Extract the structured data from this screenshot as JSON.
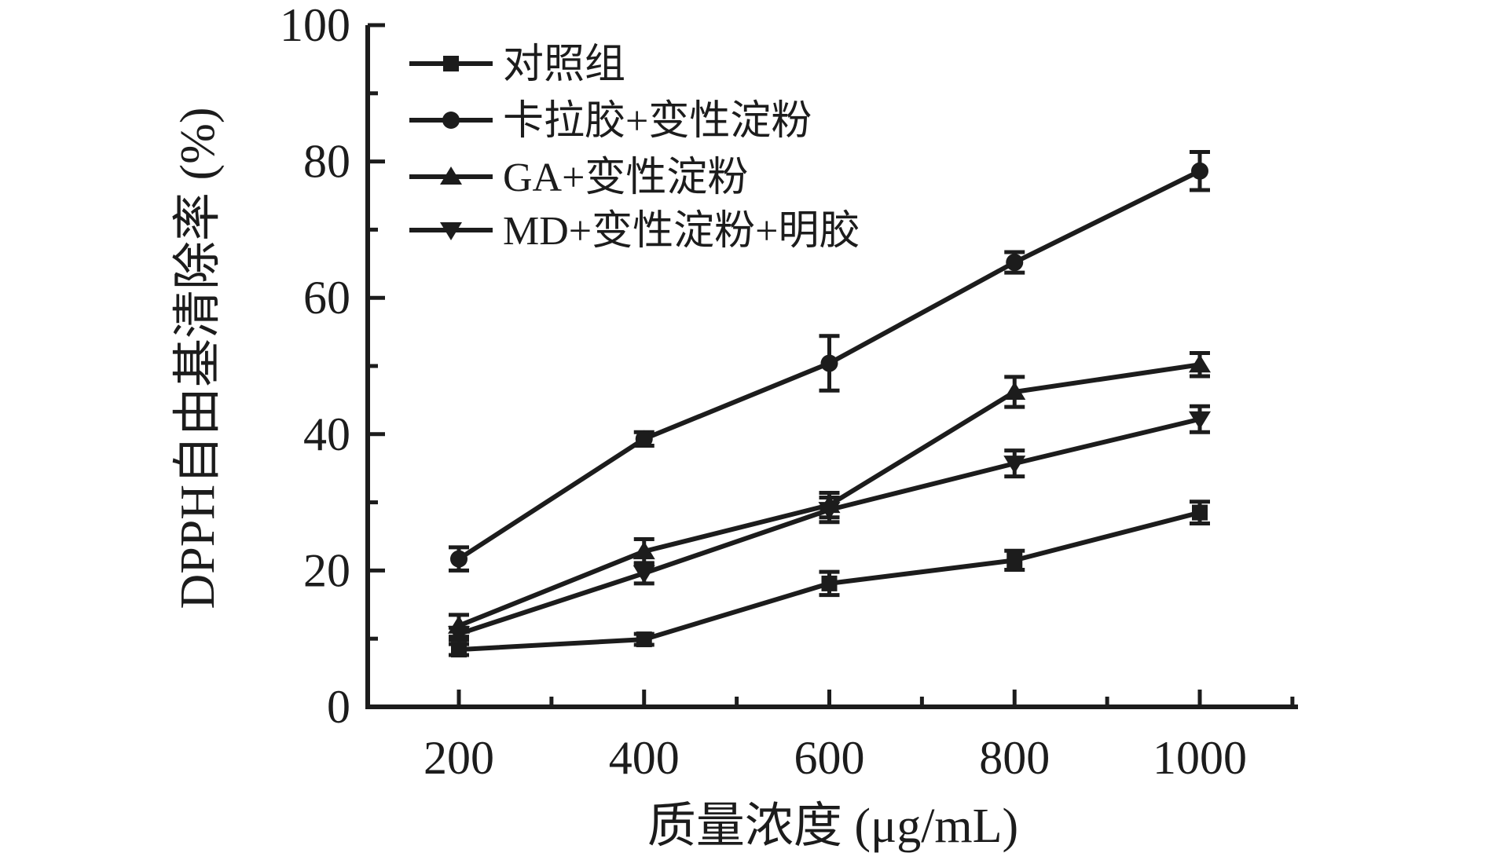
{
  "figure": {
    "background": "#ffffff",
    "ink_color": "#1c1c1c"
  },
  "chart_data": {
    "type": "line",
    "title": "",
    "xlabel": "质量浓度 (μg/mL)",
    "ylabel": "DPPH自由基清除率 (%)",
    "x": [
      200,
      400,
      600,
      800,
      1000
    ],
    "xlim": [
      100,
      1105
    ],
    "ylim": [
      0,
      100
    ],
    "x_major_ticks": [
      200,
      400,
      600,
      800,
      1000
    ],
    "x_minor_ticks": [
      300,
      500,
      700,
      900,
      1100
    ],
    "y_major_ticks": [
      0,
      20,
      40,
      60,
      80,
      100
    ],
    "y_minor_ticks": [
      10,
      30,
      50,
      70,
      90
    ],
    "grid": false,
    "error_bars": true,
    "legend_position": "top-left-inside",
    "series": [
      {
        "name": "对照组",
        "marker": "square",
        "color": "#1c1c1c",
        "values": [
          8.4,
          9.9,
          18.1,
          21.5,
          28.5
        ],
        "errors": [
          0.8,
          0.8,
          1.7,
          1.4,
          1.6
        ]
      },
      {
        "name": "卡拉胶+变性淀粉",
        "marker": "circle",
        "color": "#1c1c1c",
        "values": [
          21.7,
          39.3,
          50.4,
          65.2,
          78.6
        ],
        "errors": [
          1.7,
          1.0,
          4.0,
          1.5,
          2.8
        ]
      },
      {
        "name": "GA+变性淀粉",
        "marker": "triangle-up",
        "color": "#1c1c1c",
        "values": [
          11.9,
          22.8,
          29.6,
          46.2,
          50.2
        ],
        "errors": [
          1.6,
          1.8,
          1.8,
          2.2,
          1.7
        ]
      },
      {
        "name": "MD+变性淀粉+明胶",
        "marker": "triangle-down",
        "color": "#1c1c1c",
        "values": [
          10.7,
          19.6,
          28.9,
          35.7,
          42.2
        ],
        "errors": [
          0.9,
          1.5,
          1.8,
          1.9,
          1.9
        ]
      }
    ]
  }
}
